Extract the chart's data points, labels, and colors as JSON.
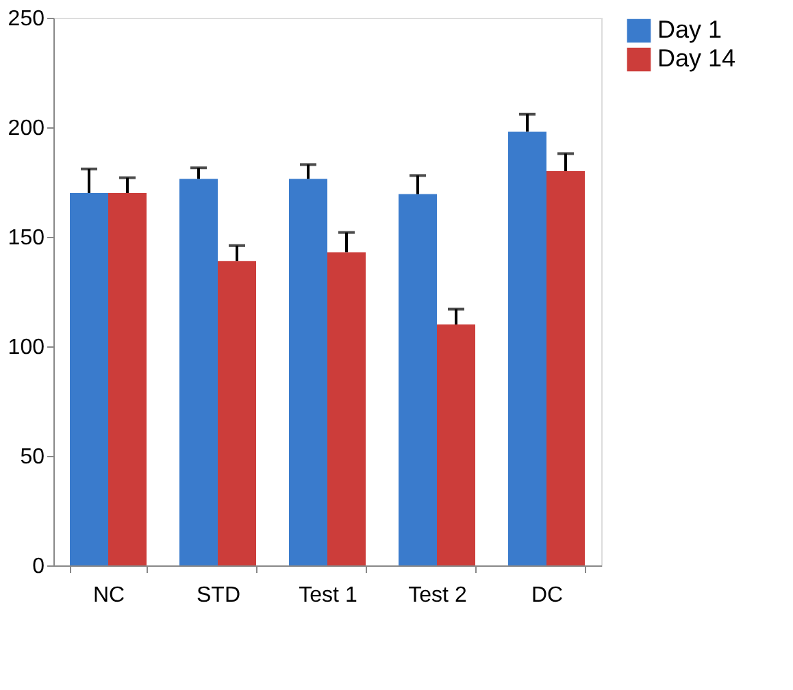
{
  "chart_data": {
    "type": "bar",
    "categories": [
      "NC",
      "STD",
      "Test 1",
      "Test 2",
      "DC"
    ],
    "series": [
      {
        "name": "Day 1",
        "color": "#3a7bcc",
        "values": [
          170,
          176.5,
          176.5,
          169.5,
          198
        ],
        "errors": [
          [
            170,
            181
          ],
          [
            176.5,
            181.5
          ],
          [
            176.5,
            183
          ],
          [
            169.5,
            178
          ],
          [
            198,
            206
          ]
        ]
      },
      {
        "name": "Day 14",
        "color": "#cc3d3a",
        "values": [
          170,
          139,
          143,
          110,
          180
        ],
        "errors": [
          [
            170,
            177
          ],
          [
            139,
            146
          ],
          [
            143,
            152
          ],
          [
            110,
            117
          ],
          [
            180,
            188
          ]
        ]
      }
    ],
    "ylim": [
      0,
      250
    ],
    "yticks": [
      0,
      50,
      100,
      150,
      200,
      250
    ],
    "grid": false,
    "legend": "right"
  }
}
